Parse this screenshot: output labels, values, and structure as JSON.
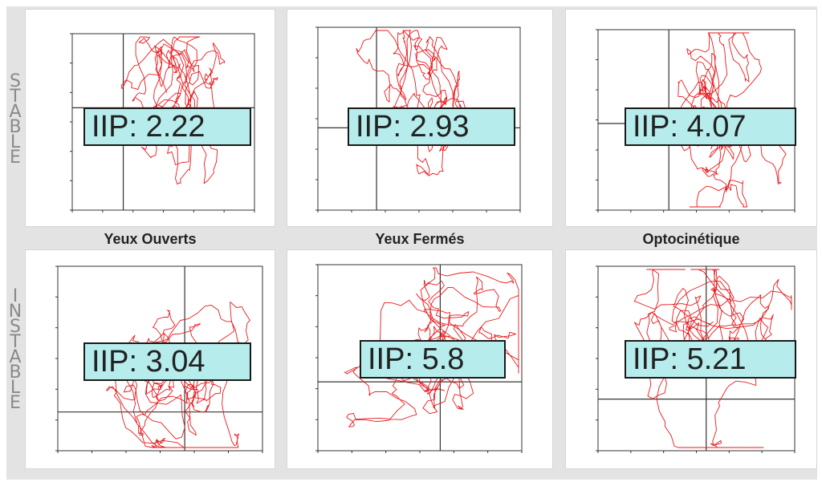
{
  "row_labels": {
    "stable": [
      "S",
      "T",
      "A",
      "B",
      "L",
      "E"
    ],
    "instable": [
      "I",
      "N",
      "S",
      "T",
      "A",
      "B",
      "L",
      "E"
    ]
  },
  "column_labels": [
    "Yeux Ouverts",
    "Yeux Fermés",
    "Optocinétique"
  ],
  "colors": {
    "trace": "#e8191c",
    "iip_box": "#b6ecec",
    "axis": "#333333",
    "background": "#e3e3e3"
  },
  "chart_data": [
    {
      "type": "line",
      "row": "STABLE",
      "column": "Yeux Ouverts",
      "iip_label": "IIP: 2.22",
      "iip": 2.22,
      "grid": false
    },
    {
      "type": "line",
      "row": "STABLE",
      "column": "Yeux Fermés",
      "iip_label": "IIP: 2.93",
      "iip": 2.93,
      "grid": false
    },
    {
      "type": "line",
      "row": "STABLE",
      "column": "Optocinétique",
      "iip_label": "IIP: 4.07",
      "iip": 4.07,
      "grid": false
    },
    {
      "type": "line",
      "row": "INSTABLE",
      "column": "Yeux Ouverts",
      "iip_label": "IIP: 3.04",
      "iip": 3.04,
      "grid": false
    },
    {
      "type": "line",
      "row": "INSTABLE",
      "column": "Yeux Fermés",
      "iip_label": "IIP: 5.8",
      "iip": 5.8,
      "grid": false
    },
    {
      "type": "line",
      "row": "INSTABLE",
      "column": "Optocinétique",
      "iip_label": "IIP: 5.21",
      "iip": 5.21,
      "grid": false
    }
  ]
}
